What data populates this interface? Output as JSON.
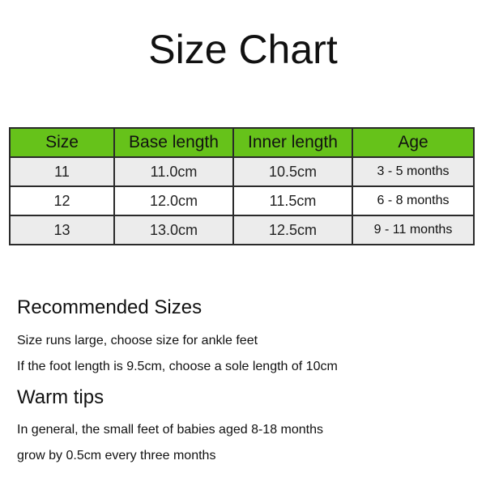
{
  "title": "Size Chart",
  "table": {
    "headers": [
      "Size",
      "Base length",
      "Inner length",
      "Age"
    ],
    "rows": [
      [
        "11",
        "11.0cm",
        "10.5cm",
        "3 - 5 months"
      ],
      [
        "12",
        "12.0cm",
        "11.5cm",
        "6 - 8 months"
      ],
      [
        "13",
        "13.0cm",
        "12.5cm",
        "9 - 11 months"
      ]
    ],
    "header_color": "#66c21a"
  },
  "recommended": {
    "heading": "Recommended Sizes",
    "lines": [
      "Size runs large, choose size for ankle feet",
      "If the foot length is 9.5cm, choose a sole length of 10cm"
    ]
  },
  "tips": {
    "heading": "Warm tips",
    "lines": [
      "In general, the small feet of babies aged 8-18 months",
      "grow by 0.5cm every three months"
    ]
  }
}
